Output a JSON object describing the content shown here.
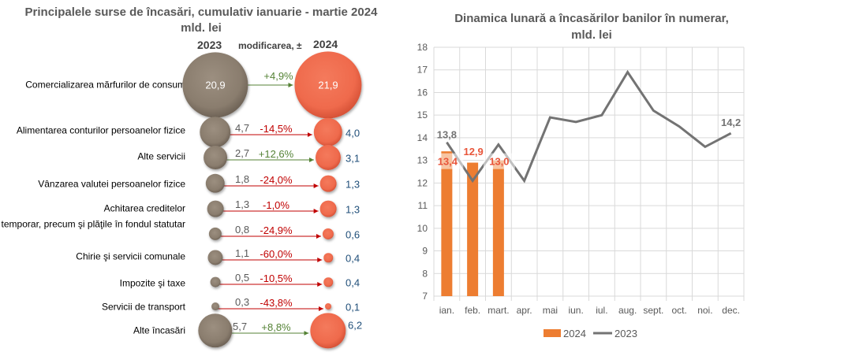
{
  "left": {
    "title_line1": "Principalele surse de încasări, cumulativ ianuarie - martie 2024",
    "title_line2": "mld. lei",
    "header_2023": "2023",
    "header_change": "modificarea, ±",
    "header_2024": "2024",
    "colors": {
      "y2023": "#8a7d6e",
      "y2024": "#ef6a4c",
      "positive": "#548235",
      "negative": "#c00000"
    },
    "rows": [
      {
        "label": "Comercializarea mărfurilor de consum",
        "v2023": "20,9",
        "v2024": "21,9",
        "change": "+4,9%",
        "n2023": 20.9,
        "n2024": 21.9,
        "inside": true
      },
      {
        "label": "Alimentarea conturilor persoanelor fizice",
        "v2023": "4,7",
        "v2024": "4,0",
        "change": "-14,5%",
        "n2023": 4.7,
        "n2024": 4.0
      },
      {
        "label": "Alte servicii",
        "v2023": "2,7",
        "v2024": "3,1",
        "change": "+12,6%",
        "n2023": 2.7,
        "n2024": 3.1
      },
      {
        "label": "Vânzarea valutei persoanelor fizice",
        "v2023": "1,8",
        "v2024": "1,3",
        "change": "-24,0%",
        "n2023": 1.8,
        "n2024": 1.3
      },
      {
        "label": "Achitarea creditelor",
        "v2023": "1,3",
        "v2024": "1,3",
        "change": "-1,0%",
        "n2023": 1.3,
        "n2024": 1.3
      },
      {
        "label": "Ajutorul financiar temporar, precum şi plăţile în fondul statutar",
        "v2023": "0,8",
        "v2024": "0,6",
        "change": "-24,9%",
        "n2023": 0.8,
        "n2024": 0.6
      },
      {
        "label": "Chirie şi servicii comunale",
        "v2023": "1,1",
        "v2024": "0,4",
        "change": "-60,0%",
        "n2023": 1.1,
        "n2024": 0.4
      },
      {
        "label": "Impozite şi taxe",
        "v2023": "0,5",
        "v2024": "0,4",
        "change": "-10,5%",
        "n2023": 0.5,
        "n2024": 0.4
      },
      {
        "label": "Servicii de transport",
        "v2023": "0,3",
        "v2024": "0,1",
        "change": "-43,8%",
        "n2023": 0.3,
        "n2024": 0.1
      },
      {
        "label": "Alte încasări",
        "v2023": "5,7",
        "v2024": "6,2",
        "change": "+8,8%",
        "n2023": 5.7,
        "n2024": 6.2
      }
    ]
  },
  "chart_data": {
    "type": "bar+line",
    "title": "Dinamica lunară a încasărilor banilor în numerar, mld. lei",
    "categories": [
      "ian.",
      "feb.",
      "mart.",
      "apr.",
      "mai",
      "iun.",
      "iul.",
      "aug.",
      "sept.",
      "oct.",
      "noi.",
      "dec."
    ],
    "ylim": [
      7,
      18
    ],
    "yticks": [
      "7",
      "8",
      "9",
      "10",
      "11",
      "12",
      "13",
      "14",
      "15",
      "16",
      "17",
      "18"
    ],
    "grid": true,
    "legend_position": "bottom",
    "series": [
      {
        "name": "2024",
        "type": "bar",
        "color": "#ed7d31",
        "values": [
          13.4,
          12.9,
          13.0,
          null,
          null,
          null,
          null,
          null,
          null,
          null,
          null,
          null
        ],
        "labels": [
          "13,4",
          "12,9",
          "13,0"
        ]
      },
      {
        "name": "2023",
        "type": "line",
        "color": "#737373",
        "values": [
          13.8,
          12.1,
          13.7,
          12.1,
          14.9,
          14.7,
          15.0,
          16.9,
          15.2,
          14.5,
          13.6,
          14.2
        ],
        "labels": {
          "first": "13,8",
          "last": "14,2"
        }
      }
    ]
  }
}
